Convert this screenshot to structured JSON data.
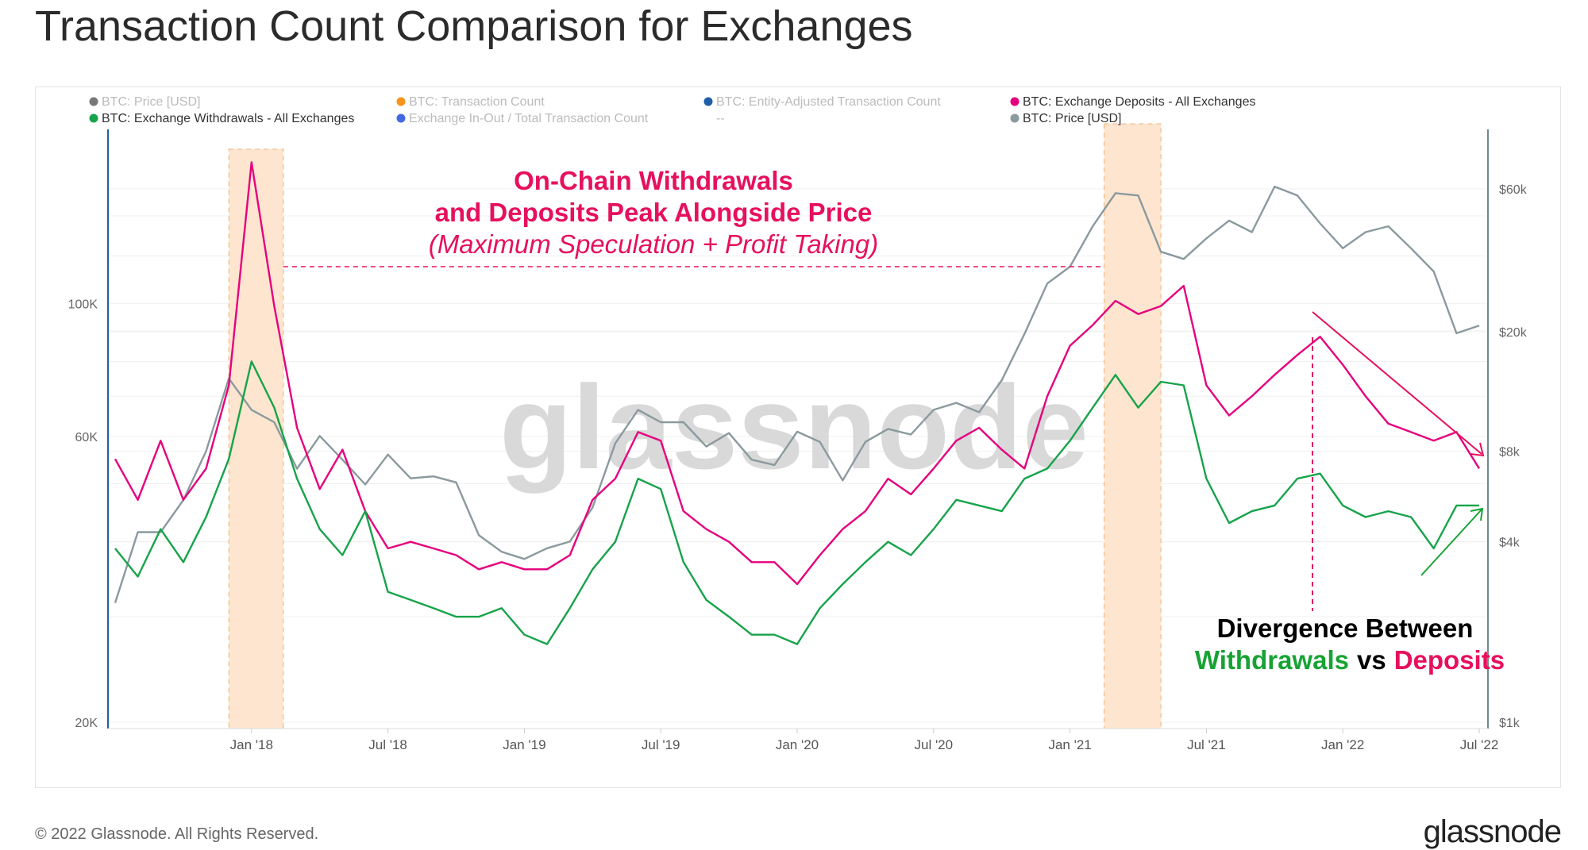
{
  "title": "Transaction Count Comparison for Exchanges",
  "footer": {
    "copyright": "© 2022 Glassnode. All Rights Reserved.",
    "logo": "glassnode"
  },
  "watermark": "glassnode",
  "legend": [
    {
      "label": "BTC: Price [USD]",
      "color": "#777777",
      "active": false
    },
    {
      "label": "BTC: Transaction Count",
      "color": "#f7931a",
      "active": false
    },
    {
      "label": "BTC: Entity-Adjusted Transaction Count",
      "color": "#1f5fa8",
      "active": false
    },
    {
      "label": "BTC: Exchange Deposits - All Exchanges",
      "color": "#e6007e",
      "active": true
    },
    {
      "label": "BTC: Exchange Withdrawals - All Exchanges",
      "color": "#17a34a",
      "active": true
    },
    {
      "label": "Exchange In-Out / Total Transaction Count",
      "color": "#4169e1",
      "active": false
    },
    {
      "label": "--",
      "color": "",
      "active": false
    },
    {
      "label": "BTC: Price [USD]",
      "color": "#8a9a9e",
      "active": true
    }
  ],
  "annotations": {
    "peak_line1": "On-Chain Withdrawals",
    "peak_line2": "and Deposits Peak Alongside Price",
    "peak_line3": "(Maximum Speculation + Profit Taking)",
    "div_line1": "Divergence Between",
    "div_withdrawals": "Withdrawals",
    "div_vs": "vs",
    "div_deposits": "Deposits"
  },
  "chart_data": {
    "type": "line",
    "title": "Transaction Count Comparison for Exchanges",
    "x_start": "Jul 2017",
    "x_step": "month",
    "x_ticks": [
      "Jan '18",
      "Jul '18",
      "Jan '19",
      "Jul '19",
      "Jan '20",
      "Jul '20",
      "Jan '21",
      "Jul '21",
      "Jan '22",
      "Jul '22"
    ],
    "y_left": {
      "scale": "log",
      "range": [
        20000,
        160000
      ],
      "ticks": [
        "20K",
        "60K",
        "100K"
      ],
      "tick_values": [
        20000,
        60000,
        100000
      ]
    },
    "y_right": {
      "scale": "log",
      "range": [
        1000,
        80000
      ],
      "ticks": [
        "$1k",
        "$4k",
        "$8k",
        "$20k",
        "$60k"
      ],
      "tick_values": [
        1000,
        4000,
        8000,
        20000,
        60000
      ]
    },
    "series": [
      {
        "name": "BTC: Exchange Deposits - All Exchanges",
        "axis": "left",
        "color": "#e6007e",
        "values": [
          55000,
          47000,
          59000,
          47000,
          53000,
          73000,
          172000,
          99000,
          62000,
          49000,
          57000,
          45000,
          39000,
          40000,
          39000,
          38000,
          36000,
          37000,
          36000,
          36000,
          38000,
          47000,
          51000,
          61000,
          59000,
          45000,
          42000,
          40000,
          37000,
          37000,
          34000,
          38000,
          42000,
          45000,
          51000,
          48000,
          53000,
          59000,
          62000,
          57000,
          53000,
          70000,
          85000,
          92000,
          101000,
          96000,
          99000,
          107000,
          73000,
          65000,
          70000,
          76000,
          82000,
          88000,
          79000,
          70000,
          63000,
          61000,
          59000,
          61000,
          53000
        ]
      },
      {
        "name": "BTC: Exchange Withdrawals - All Exchanges",
        "axis": "left",
        "color": "#17a34a",
        "values": [
          39000,
          35000,
          42000,
          37000,
          44000,
          55000,
          80000,
          67000,
          51000,
          42000,
          38000,
          45000,
          33000,
          32000,
          31000,
          30000,
          30000,
          31000,
          28000,
          27000,
          31000,
          36000,
          40000,
          51000,
          49000,
          37000,
          32000,
          30000,
          28000,
          28000,
          27000,
          31000,
          34000,
          37000,
          40000,
          38000,
          42000,
          47000,
          46000,
          45000,
          51000,
          53000,
          59000,
          67000,
          76000,
          67000,
          74000,
          73000,
          51000,
          43000,
          45000,
          46000,
          51000,
          52000,
          46000,
          44000,
          45000,
          44000,
          39000,
          46000,
          46000
        ]
      },
      {
        "name": "BTC: Price [USD]",
        "axis": "right",
        "color": "#8a9a9e",
        "values": [
          2500,
          4300,
          4300,
          5500,
          8000,
          14000,
          11000,
          10000,
          7000,
          9000,
          7500,
          6200,
          7800,
          6500,
          6600,
          6300,
          4200,
          3700,
          3500,
          3800,
          4000,
          5200,
          8500,
          11000,
          10000,
          10000,
          8300,
          9200,
          7500,
          7200,
          9300,
          8600,
          6400,
          8600,
          9500,
          9100,
          11000,
          11600,
          10800,
          13800,
          19700,
          29000,
          33000,
          45000,
          58000,
          57000,
          37000,
          35000,
          41000,
          47000,
          43000,
          61000,
          57000,
          46000,
          38000,
          43000,
          45000,
          38000,
          31800,
          19800,
          21000
        ]
      }
    ],
    "highlight_periods": [
      [
        "Dec 2017",
        "Feb 2018"
      ],
      [
        "Feb 2021",
        "May 2021"
      ]
    ],
    "legend_position": "top"
  }
}
